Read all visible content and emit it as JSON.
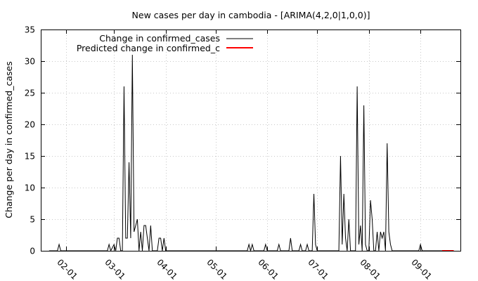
{
  "chart_data": {
    "type": "line",
    "title": "New cases per day in cambodia -  [ARIMA(4,2,0|1,0,0)]",
    "xlabel": "",
    "ylabel": "Change per day in confirmed_cases",
    "xlim": [
      "2020-01-17",
      "2020-09-25"
    ],
    "ylim": [
      0,
      35
    ],
    "yticks": [
      0,
      5,
      10,
      15,
      20,
      25,
      30,
      35
    ],
    "xticks": [
      "2020-02-01",
      "2020-03-01",
      "2020-04-01",
      "2020-05-01",
      "2020-06-01",
      "2020-07-01",
      "2020-08-01",
      "2020-09-01"
    ],
    "xtick_labels": [
      "02-01",
      "03-01",
      "04-01",
      "05-01",
      "06-01",
      "07-01",
      "08-01",
      "09-01"
    ],
    "grid": true,
    "legend_position": "top-left",
    "series": [
      {
        "name": "Change in confirmed_cases",
        "color": "#000000",
        "points": [
          [
            "2020-01-22",
            0
          ],
          [
            "2020-01-27",
            0
          ],
          [
            "2020-01-28",
            1
          ],
          [
            "2020-01-29",
            0
          ],
          [
            "2020-02-25",
            0
          ],
          [
            "2020-02-26",
            0
          ],
          [
            "2020-02-27",
            1
          ],
          [
            "2020-02-28",
            0
          ],
          [
            "2020-03-01",
            1
          ],
          [
            "2020-03-02",
            0
          ],
          [
            "2020-03-03",
            2
          ],
          [
            "2020-03-04",
            2
          ],
          [
            "2020-03-05",
            0
          ],
          [
            "2020-03-06",
            0
          ],
          [
            "2020-03-07",
            26
          ],
          [
            "2020-03-08",
            2
          ],
          [
            "2020-03-09",
            2
          ],
          [
            "2020-03-10",
            14
          ],
          [
            "2020-03-11",
            2
          ],
          [
            "2020-03-12",
            31
          ],
          [
            "2020-03-13",
            3
          ],
          [
            "2020-03-14",
            4
          ],
          [
            "2020-03-15",
            5
          ],
          [
            "2020-03-16",
            0
          ],
          [
            "2020-03-17",
            3
          ],
          [
            "2020-03-18",
            0
          ],
          [
            "2020-03-19",
            4
          ],
          [
            "2020-03-20",
            4
          ],
          [
            "2020-03-21",
            2
          ],
          [
            "2020-03-22",
            0
          ],
          [
            "2020-03-23",
            4
          ],
          [
            "2020-03-24",
            0
          ],
          [
            "2020-03-27",
            0
          ],
          [
            "2020-03-28",
            2
          ],
          [
            "2020-03-29",
            2
          ],
          [
            "2020-03-30",
            0
          ],
          [
            "2020-03-31",
            2
          ],
          [
            "2020-04-01",
            0
          ],
          [
            "2020-05-20",
            0
          ],
          [
            "2020-05-21",
            1
          ],
          [
            "2020-05-22",
            0
          ],
          [
            "2020-05-23",
            1
          ],
          [
            "2020-05-24",
            0
          ],
          [
            "2020-05-30",
            0
          ],
          [
            "2020-05-31",
            1
          ],
          [
            "2020-06-01",
            0
          ],
          [
            "2020-06-07",
            0
          ],
          [
            "2020-06-08",
            1
          ],
          [
            "2020-06-09",
            0
          ],
          [
            "2020-06-14",
            0
          ],
          [
            "2020-06-15",
            2
          ],
          [
            "2020-06-16",
            0
          ],
          [
            "2020-06-20",
            0
          ],
          [
            "2020-06-21",
            1
          ],
          [
            "2020-06-22",
            0
          ],
          [
            "2020-06-24",
            0
          ],
          [
            "2020-06-25",
            1
          ],
          [
            "2020-06-26",
            0
          ],
          [
            "2020-06-28",
            0
          ],
          [
            "2020-06-29",
            9
          ],
          [
            "2020-06-30",
            1
          ],
          [
            "2020-07-01",
            0
          ],
          [
            "2020-07-14",
            0
          ],
          [
            "2020-07-15",
            15
          ],
          [
            "2020-07-16",
            1
          ],
          [
            "2020-07-17",
            9
          ],
          [
            "2020-07-18",
            2
          ],
          [
            "2020-07-19",
            0
          ],
          [
            "2020-07-20",
            5
          ],
          [
            "2020-07-21",
            0
          ],
          [
            "2020-07-24",
            0
          ],
          [
            "2020-07-25",
            26
          ],
          [
            "2020-07-26",
            1
          ],
          [
            "2020-07-27",
            4
          ],
          [
            "2020-07-28",
            0
          ],
          [
            "2020-07-29",
            23
          ],
          [
            "2020-07-30",
            1
          ],
          [
            "2020-07-31",
            0
          ],
          [
            "2020-08-01",
            0
          ],
          [
            "2020-08-02",
            8
          ],
          [
            "2020-08-03",
            5
          ],
          [
            "2020-08-04",
            0
          ],
          [
            "2020-08-05",
            0
          ],
          [
            "2020-08-06",
            3
          ],
          [
            "2020-08-07",
            0
          ],
          [
            "2020-08-08",
            3
          ],
          [
            "2020-08-09",
            2
          ],
          [
            "2020-08-10",
            3
          ],
          [
            "2020-08-11",
            0
          ],
          [
            "2020-08-12",
            17
          ],
          [
            "2020-08-13",
            3
          ],
          [
            "2020-08-14",
            1
          ],
          [
            "2020-08-15",
            0
          ],
          [
            "2020-08-31",
            0
          ],
          [
            "2020-09-01",
            1
          ],
          [
            "2020-09-02",
            0
          ],
          [
            "2020-09-14",
            0
          ]
        ]
      },
      {
        "name": "Predicted change in confirmed_c",
        "color": "#ff0000",
        "points": [
          [
            "2020-09-14",
            0
          ],
          [
            "2020-09-15",
            0
          ],
          [
            "2020-09-16",
            0
          ],
          [
            "2020-09-17",
            0
          ],
          [
            "2020-09-18",
            0
          ],
          [
            "2020-09-19",
            0
          ],
          [
            "2020-09-20",
            0
          ],
          [
            "2020-09-21",
            0
          ]
        ]
      }
    ]
  }
}
